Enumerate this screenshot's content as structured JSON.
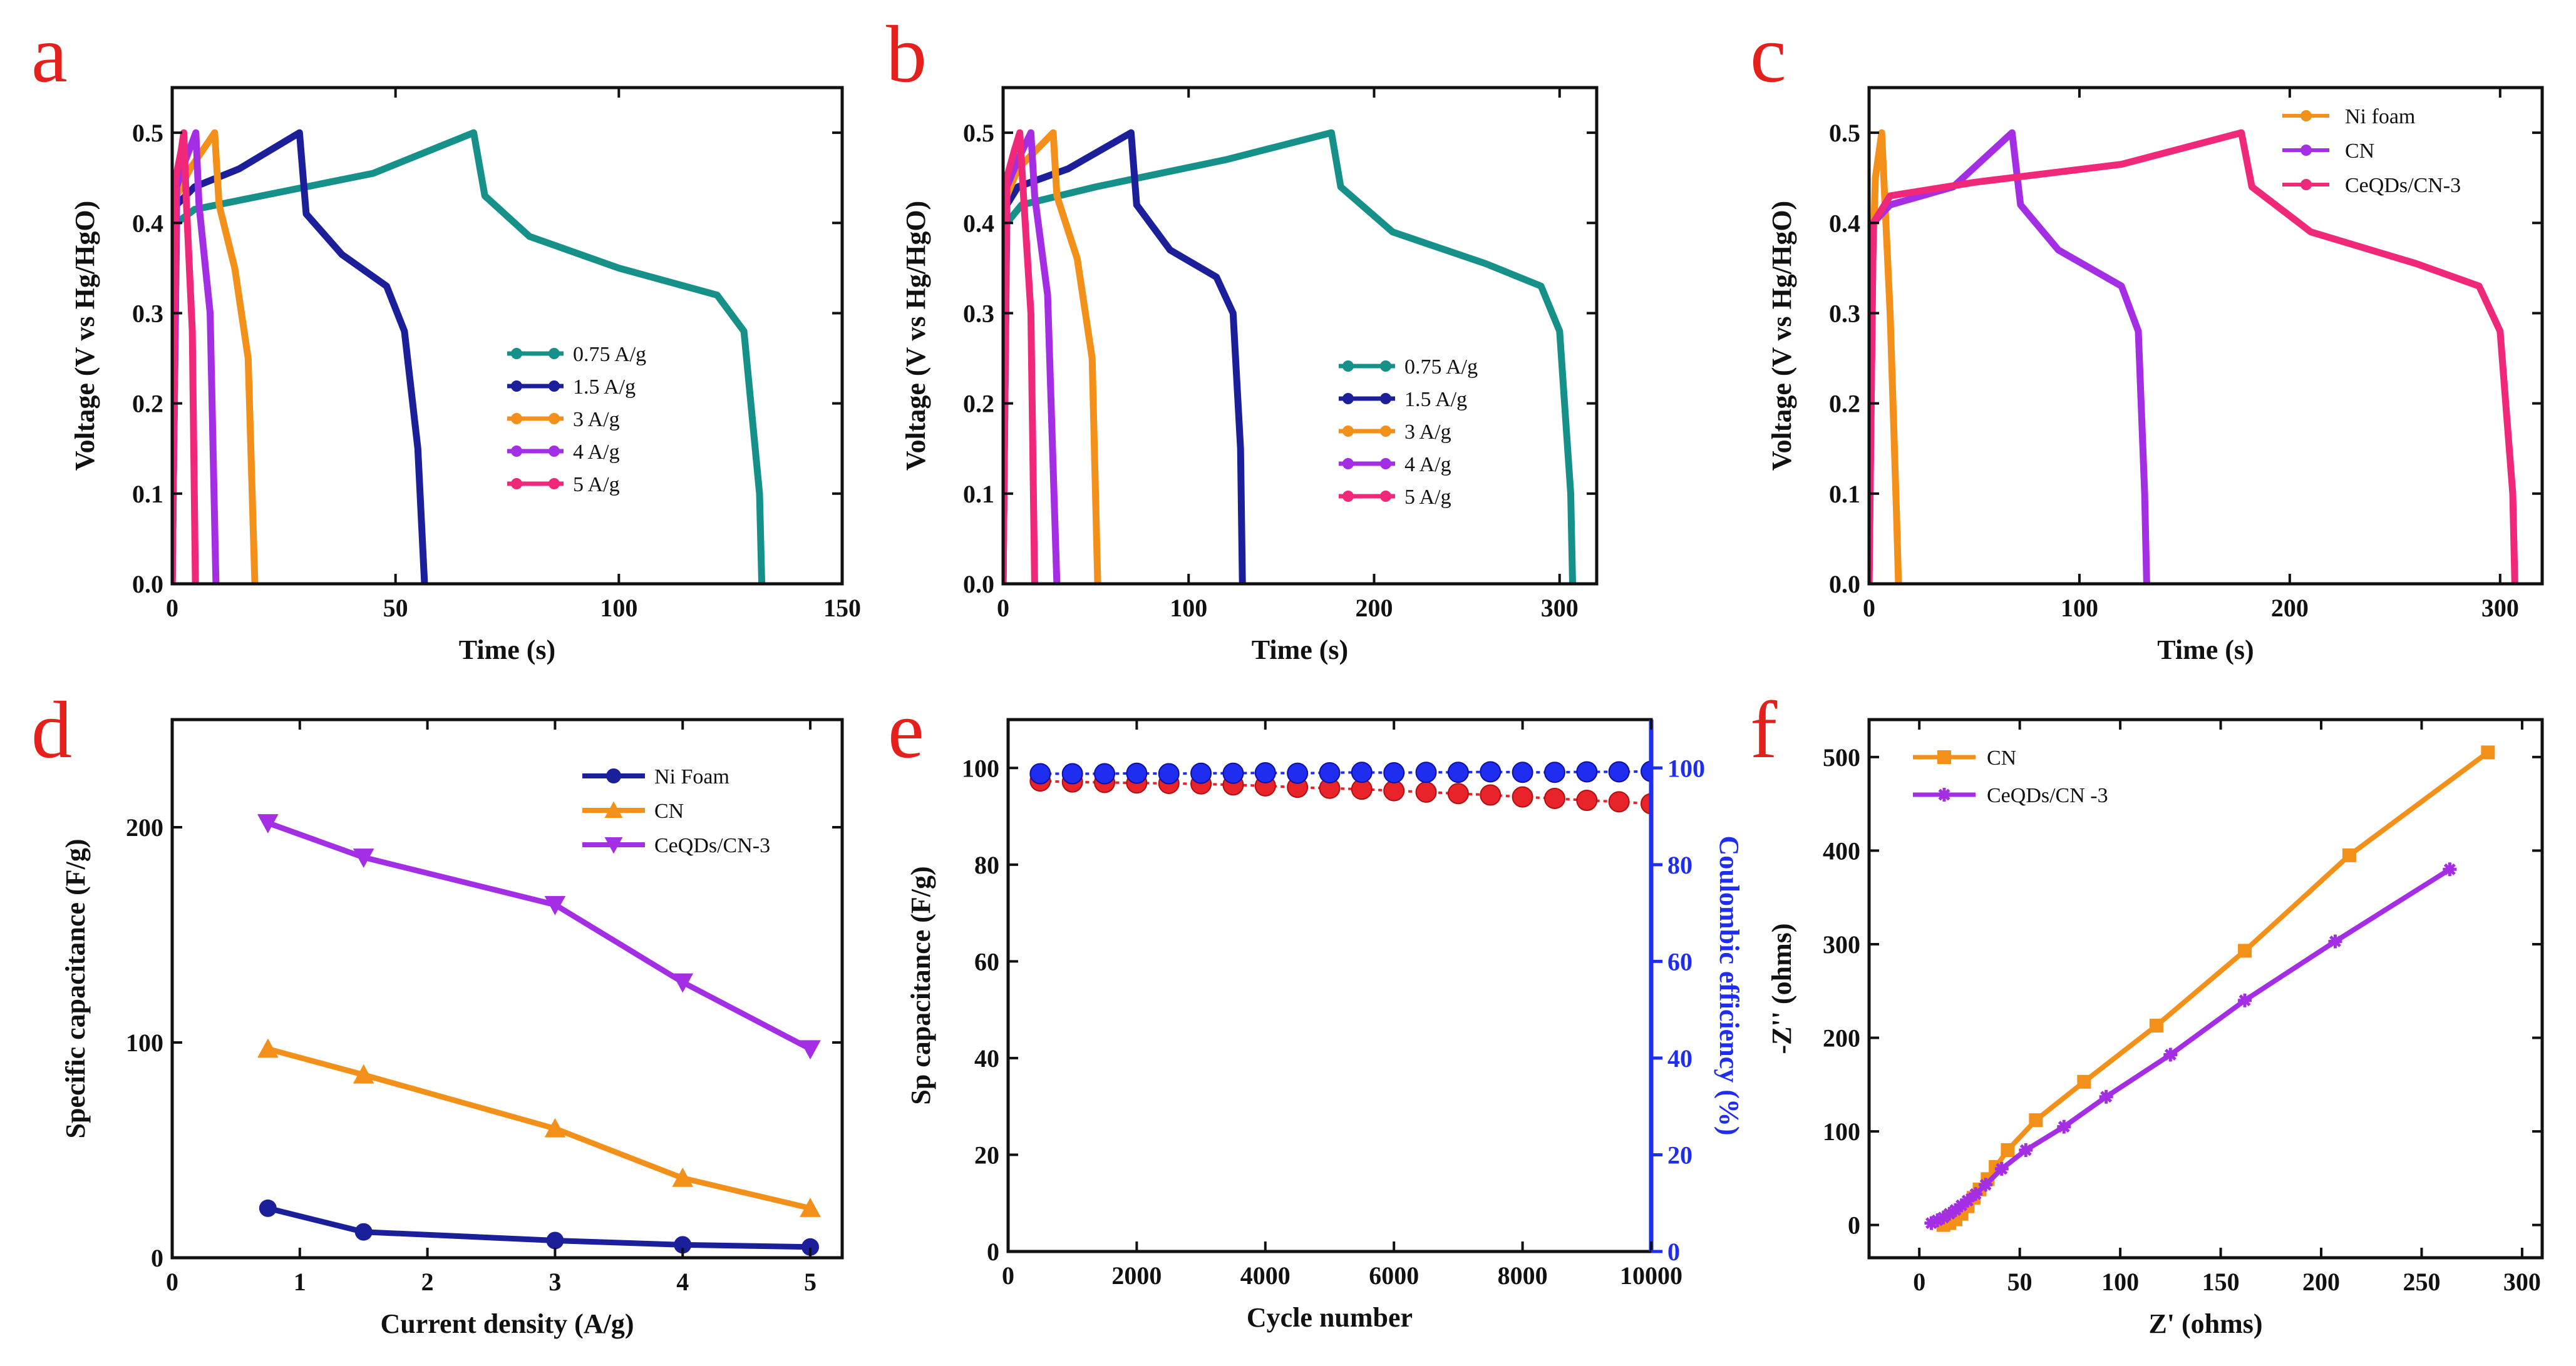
{
  "chart_data": [
    {
      "panel": "a",
      "type": "line",
      "xlabel": "Time (s)",
      "ylabel": "Voltage (V vs Hg/HgO)",
      "xlim": [
        0,
        150
      ],
      "ylim": [
        0,
        0.55
      ],
      "xticks": [
        0,
        50,
        100,
        150
      ],
      "yticks": [
        0.0,
        0.1,
        0.2,
        0.3,
        0.4,
        0.5
      ],
      "legend_position": "middle-right",
      "series": [
        {
          "name": "0.75 A/g",
          "color": "#159189",
          "x": [
            0,
            1,
            5,
            20,
            45,
            67.5,
            70,
            80,
            100,
            122,
            128,
            131.5,
            132
          ],
          "y": [
            0,
            0.4,
            0.415,
            0.43,
            0.455,
            0.5,
            0.43,
            0.385,
            0.35,
            0.32,
            0.28,
            0.1,
            0
          ]
        },
        {
          "name": "1.5 A/g",
          "color": "#1b1f9a",
          "x": [
            0,
            1,
            5,
            15,
            28.5,
            30,
            38,
            48,
            52,
            55,
            56.5
          ],
          "y": [
            0,
            0.42,
            0.44,
            0.46,
            0.5,
            0.41,
            0.365,
            0.33,
            0.28,
            0.15,
            0
          ]
        },
        {
          "name": "3 A/g",
          "color": "#f39019",
          "x": [
            0,
            1,
            4,
            9.5,
            10.5,
            14,
            17,
            18.5
          ],
          "y": [
            0,
            0.43,
            0.46,
            0.5,
            0.42,
            0.35,
            0.25,
            0
          ]
        },
        {
          "name": "4 A/g",
          "color": "#a32ee3",
          "x": [
            0,
            1,
            3,
            5.3,
            6,
            8.5,
            9.8
          ],
          "y": [
            0,
            0.44,
            0.47,
            0.5,
            0.42,
            0.3,
            0
          ]
        },
        {
          "name": "5 A/g",
          "color": "#f0287a",
          "x": [
            0,
            0.8,
            2,
            2.6,
            3.2,
            4.5,
            5.2
          ],
          "y": [
            0,
            0.45,
            0.48,
            0.5,
            0.42,
            0.28,
            0
          ]
        }
      ]
    },
    {
      "panel": "b",
      "type": "line",
      "xlabel": "Time (s)",
      "ylabel": "Voltage (V vs Hg/HgO)",
      "xlim": [
        0,
        320
      ],
      "ylim": [
        0,
        0.55
      ],
      "xticks": [
        0,
        100,
        200,
        300
      ],
      "yticks": [
        0.0,
        0.1,
        0.2,
        0.3,
        0.4,
        0.5
      ],
      "legend_position": "middle-right",
      "series": [
        {
          "name": "0.75 A/g",
          "color": "#159189",
          "x": [
            0,
            2,
            10,
            50,
            120,
            177,
            182,
            210,
            260,
            290,
            300,
            306,
            307
          ],
          "y": [
            0,
            0.4,
            0.42,
            0.44,
            0.47,
            0.5,
            0.44,
            0.39,
            0.355,
            0.33,
            0.28,
            0.1,
            0
          ]
        },
        {
          "name": "1.5 A/g",
          "color": "#1b1f9a",
          "x": [
            0,
            2,
            8,
            35,
            69,
            72,
            90,
            115,
            124,
            128,
            129
          ],
          "y": [
            0,
            0.42,
            0.44,
            0.46,
            0.5,
            0.42,
            0.37,
            0.34,
            0.3,
            0.15,
            0
          ]
        },
        {
          "name": "3 A/g",
          "color": "#f39019",
          "x": [
            0,
            2,
            8,
            27,
            29,
            40,
            48,
            51
          ],
          "y": [
            0,
            0.43,
            0.46,
            0.5,
            0.43,
            0.36,
            0.25,
            0
          ]
        },
        {
          "name": "4 A/g",
          "color": "#a32ee3",
          "x": [
            0,
            2,
            8,
            15,
            17,
            24,
            29
          ],
          "y": [
            0,
            0.44,
            0.47,
            0.5,
            0.43,
            0.32,
            0
          ]
        },
        {
          "name": "5 A/g",
          "color": "#f0287a",
          "x": [
            0,
            2,
            6,
            9,
            11,
            15,
            17
          ],
          "y": [
            0,
            0.45,
            0.48,
            0.5,
            0.43,
            0.3,
            0
          ]
        }
      ]
    },
    {
      "panel": "c",
      "type": "line",
      "xlabel": "Time (s)",
      "ylabel": "Voltage (V vs Hg/HgO)",
      "xlim": [
        0,
        320
      ],
      "ylim": [
        0,
        0.55
      ],
      "xticks": [
        0,
        100,
        200,
        300
      ],
      "yticks": [
        0.0,
        0.1,
        0.2,
        0.3,
        0.4,
        0.5
      ],
      "legend_position": "top-right",
      "series": [
        {
          "name": "Ni foam",
          "color": "#f39019",
          "x": [
            0,
            1,
            3,
            6,
            7,
            10,
            13,
            14
          ],
          "y": [
            0,
            0.3,
            0.45,
            0.5,
            0.45,
            0.3,
            0.08,
            0
          ]
        },
        {
          "name": "CN",
          "color": "#a32ee3",
          "x": [
            0,
            2,
            10,
            40,
            68,
            72,
            90,
            120,
            128,
            131,
            132
          ],
          "y": [
            0,
            0.4,
            0.42,
            0.44,
            0.5,
            0.42,
            0.37,
            0.33,
            0.28,
            0.1,
            0
          ]
        },
        {
          "name": "CeQDs/CN-3",
          "color": "#f0287a",
          "x": [
            0,
            2,
            10,
            50,
            120,
            177,
            182,
            210,
            260,
            290,
            300,
            306,
            307
          ],
          "y": [
            0,
            0.4,
            0.43,
            0.445,
            0.465,
            0.5,
            0.44,
            0.39,
            0.355,
            0.33,
            0.28,
            0.1,
            0
          ]
        }
      ]
    },
    {
      "panel": "d",
      "type": "line",
      "xlabel": "Current density (A/g)",
      "ylabel": "Specific capacitance (F/g)",
      "xlim": [
        0,
        5.25
      ],
      "ylim": [
        0,
        250
      ],
      "xticks": [
        0,
        1,
        2,
        3,
        4,
        5
      ],
      "yticks": [
        0,
        100,
        200
      ],
      "legend_position": "top-right",
      "categories": [
        0.75,
        1.5,
        3,
        4,
        5
      ],
      "series": [
        {
          "name": "Ni Foam",
          "color": "#1b1f9a",
          "marker": "circle",
          "values": [
            23,
            12,
            8,
            6,
            5
          ]
        },
        {
          "name": "CN",
          "color": "#f39019",
          "marker": "triangle-up",
          "values": [
            97,
            85,
            60,
            37,
            23
          ]
        },
        {
          "name": "CeQDs/CN-3",
          "color": "#a32ee3",
          "marker": "triangle-down",
          "values": [
            202,
            186,
            164,
            128,
            97
          ]
        }
      ]
    },
    {
      "panel": "e",
      "type": "scatter",
      "xlabel": "Cycle number",
      "ylabel": "Sp capacitance (F/g)",
      "ylabel_right": "Coulombic efficiency (%)",
      "xlim": [
        0,
        10000
      ],
      "ylim": [
        0,
        110
      ],
      "ylim_right": [
        0,
        110
      ],
      "xticks": [
        0,
        2000,
        4000,
        6000,
        8000,
        10000
      ],
      "yticks": [
        0,
        20,
        40,
        60,
        80,
        100
      ],
      "yticks_right": [
        0,
        20,
        40,
        60,
        80,
        100
      ],
      "x": [
        500,
        1000,
        1500,
        2000,
        2500,
        3000,
        3500,
        4000,
        4500,
        5000,
        5500,
        6000,
        6500,
        7000,
        7500,
        8000,
        8500,
        9000,
        9500,
        10000
      ],
      "series": [
        {
          "name": "Sp capacitance",
          "axis": "left",
          "color": "#e8242a",
          "values": [
            97.3,
            97.1,
            97.0,
            96.9,
            96.8,
            96.7,
            96.5,
            96.3,
            96.0,
            95.8,
            95.6,
            95.3,
            95.0,
            94.7,
            94.4,
            94.0,
            93.7,
            93.3,
            93.0,
            92.6
          ]
        },
        {
          "name": "Coulombic efficiency",
          "axis": "right",
          "color": "#1f2df0",
          "values": [
            98.8,
            98.8,
            98.8,
            98.9,
            98.8,
            98.9,
            98.9,
            99.0,
            98.9,
            99.0,
            99.1,
            99.0,
            99.1,
            99.1,
            99.2,
            99.1,
            99.1,
            99.2,
            99.2,
            99.3
          ]
        }
      ]
    },
    {
      "panel": "f",
      "type": "line",
      "xlabel": "Z' (ohms)",
      "ylabel": "-Z'' (ohms)",
      "xlim": [
        -25,
        310
      ],
      "ylim": [
        -35,
        540
      ],
      "xticks": [
        0,
        50,
        100,
        150,
        200,
        250,
        300
      ],
      "yticks": [
        0,
        100,
        200,
        300,
        400,
        500
      ],
      "legend_position": "top-left",
      "series": [
        {
          "name": "CN",
          "color": "#f39019",
          "marker": "square",
          "x": [
            12,
            15,
            18,
            21,
            24,
            27,
            30,
            34,
            38,
            44,
            58,
            82,
            118,
            162,
            214,
            283
          ],
          "y": [
            0,
            2,
            6,
            12,
            20,
            29,
            38,
            49,
            62,
            80,
            112,
            153,
            213,
            293,
            395,
            505
          ]
        },
        {
          "name": "CeQDs/CN -3",
          "color": "#a32ee3",
          "marker": "asterisk",
          "x": [
            6,
            9,
            12,
            15,
            18,
            21,
            24,
            28,
            33,
            41,
            53,
            72,
            93,
            125,
            162,
            207,
            264
          ],
          "y": [
            2,
            5,
            8,
            12,
            16,
            21,
            26,
            33,
            43,
            60,
            80,
            105,
            137,
            182,
            240,
            303,
            380
          ]
        }
      ]
    }
  ]
}
